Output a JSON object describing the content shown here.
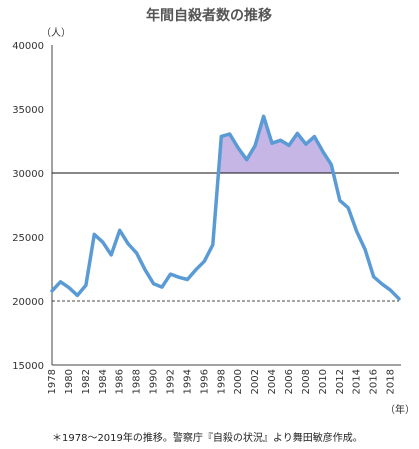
{
  "chart_data": {
    "type": "line",
    "title": "年間自殺者数の推移",
    "y_unit_label": "（人）",
    "x_unit_label": "（年）",
    "note": "＊1978～2019年の推移。警察庁『自殺の状況』より舞田敏彦作成。",
    "x": [
      1978,
      1979,
      1980,
      1981,
      1982,
      1983,
      1984,
      1985,
      1986,
      1987,
      1988,
      1989,
      1990,
      1991,
      1992,
      1993,
      1994,
      1995,
      1996,
      1997,
      1998,
      1999,
      2000,
      2001,
      2002,
      2003,
      2004,
      2005,
      2006,
      2007,
      2008,
      2009,
      2010,
      2011,
      2012,
      2013,
      2014,
      2015,
      2016,
      2017,
      2018,
      2019
    ],
    "values": [
      20788,
      21503,
      21048,
      20434,
      21228,
      25202,
      24596,
      23599,
      25524,
      24460,
      23742,
      22436,
      21346,
      21084,
      22104,
      21851,
      21679,
      22445,
      23104,
      24391,
      32863,
      33048,
      31957,
      31042,
      32143,
      34427,
      32325,
      32552,
      32155,
      33093,
      32249,
      32845,
      31690,
      30651,
      27858,
      27283,
      25427,
      24025,
      21897,
      21321,
      20840,
      20169
    ],
    "y_ticks": [
      "15000",
      "20000",
      "25000",
      "30000",
      "35000",
      "40000"
    ],
    "ylim": [
      15000,
      40000
    ],
    "x_ticks": [
      "1978",
      "1980",
      "1982",
      "1984",
      "1986",
      "1988",
      "1990",
      "1992",
      "1994",
      "1996",
      "1998",
      "2000",
      "2002",
      "2004",
      "2006",
      "2008",
      "2010",
      "2012",
      "2014",
      "2016",
      "2018"
    ],
    "reference_lines": [
      {
        "value": 30000,
        "style": "solid"
      },
      {
        "value": 20000,
        "style": "dashed"
      }
    ],
    "shade_above": 30000,
    "grid": false,
    "line_color": "#5b9bd5",
    "fill_color": "#c5b6e6"
  }
}
